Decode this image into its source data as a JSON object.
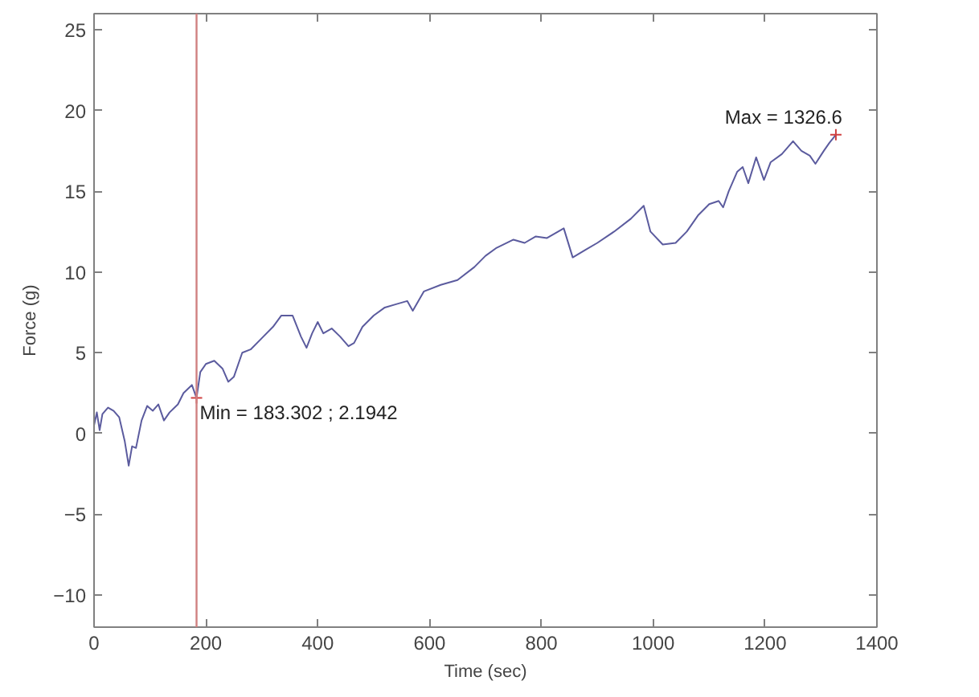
{
  "chart_data": {
    "type": "line",
    "xlabel": "Time (sec)",
    "ylabel": "Force (g)",
    "x": [
      0,
      5,
      10,
      15,
      25,
      35,
      45,
      55,
      62,
      68,
      75,
      85,
      95,
      105,
      115,
      125,
      135,
      150,
      160,
      175,
      183.302,
      190,
      200,
      215,
      230,
      240,
      250,
      265,
      280,
      300,
      320,
      335,
      355,
      370,
      380,
      390,
      400,
      410,
      425,
      440,
      455,
      465,
      480,
      500,
      520,
      540,
      560,
      570,
      590,
      620,
      650,
      680,
      700,
      720,
      750,
      770,
      790,
      810,
      830,
      840,
      856,
      880,
      900,
      930,
      960,
      983,
      995,
      1017,
      1040,
      1060,
      1080,
      1100,
      1117,
      1125,
      1135,
      1150,
      1160,
      1170,
      1184,
      1198,
      1210,
      1230,
      1250,
      1265,
      1280,
      1290,
      1305,
      1315,
      1326.6
    ],
    "series": [
      {
        "color": "#5b5b9e",
        "values": [
          0.5,
          1.3,
          0.2,
          1.2,
          1.6,
          1.4,
          1.0,
          -0.5,
          -2.0,
          -0.8,
          -0.9,
          0.8,
          1.7,
          1.4,
          1.8,
          0.8,
          1.3,
          1.8,
          2.5,
          3.0,
          2.1942,
          3.8,
          4.3,
          4.5,
          4.0,
          3.2,
          3.5,
          5.0,
          5.2,
          5.9,
          6.6,
          7.3,
          7.3,
          6.0,
          5.3,
          6.2,
          6.9,
          6.2,
          6.5,
          6.0,
          5.4,
          5.6,
          6.6,
          7.3,
          7.8,
          8.0,
          8.2,
          7.6,
          8.8,
          9.2,
          9.5,
          10.3,
          11.0,
          11.5,
          12.0,
          11.8,
          12.2,
          12.1,
          12.5,
          12.7,
          10.9,
          11.4,
          11.8,
          12.5,
          13.3,
          14.1,
          12.5,
          11.7,
          11.8,
          12.5,
          13.5,
          14.2,
          14.4,
          14.0,
          15.0,
          16.2,
          16.5,
          15.5,
          17.1,
          15.7,
          16.8,
          17.3,
          18.1,
          17.5,
          17.2,
          16.7,
          17.5,
          18.0,
          18.5
        ]
      }
    ],
    "xlim": [
      0,
      1400
    ],
    "xticks": [
      0,
      200,
      400,
      600,
      800,
      1000,
      1200,
      1400
    ],
    "ylim": [
      -12,
      26
    ],
    "yticks": [
      -10,
      -5,
      0,
      5,
      10,
      15,
      20,
      25
    ],
    "ref_lines": [
      {
        "axis": "x",
        "value": 183.302,
        "color": "#d08080"
      }
    ],
    "annotations": [
      {
        "text": "Min = 183.302 ; 2.1942",
        "x": 183.302,
        "y": 2.1942
      },
      {
        "text": "Max = 1326.6",
        "x": 1326.6,
        "y": 18.5
      }
    ],
    "grid": false
  }
}
